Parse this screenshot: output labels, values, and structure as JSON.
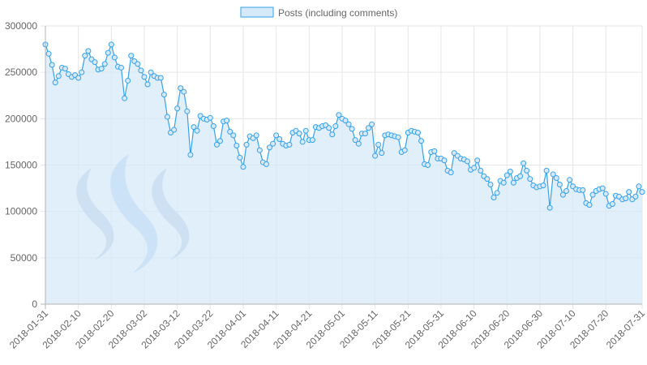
{
  "chart_data": {
    "type": "area",
    "title": "",
    "xlabel": "",
    "ylabel": "",
    "legend": {
      "position": "top-center",
      "entries": [
        "Posts (including comments)"
      ]
    },
    "grid": true,
    "ylim": [
      0,
      300000
    ],
    "y_ticks": [
      "0",
      "50000",
      "100000",
      "150000",
      "200000",
      "250000",
      "300000"
    ],
    "x_tick_labels": [
      "2018-01-31",
      "2018-02-10",
      "2018-02-20",
      "2018-03-02",
      "2018-03-12",
      "2018-03-22",
      "2018-04-01",
      "2018-04-11",
      "2018-04-21",
      "2018-05-01",
      "2018-05-11",
      "2018-05-21",
      "2018-05-31",
      "2018-06-10",
      "2018-06-20",
      "2018-06-30",
      "2018-07-10",
      "2018-07-20",
      "2018-07-31"
    ],
    "x_start": "2018-01-31",
    "x_end": "2018-07-31",
    "colors": {
      "line": "#36a2eb",
      "fill": "#d6e9f8",
      "point_fill": "#d6e9f8",
      "grid": "#e6e6e6",
      "axis": "#b3b3b3"
    },
    "series": [
      {
        "name": "Posts (including comments)",
        "values": [
          280000,
          270000,
          258000,
          239000,
          246000,
          255000,
          254000,
          248000,
          245000,
          247000,
          244000,
          250000,
          268000,
          273000,
          264000,
          261000,
          253000,
          254000,
          259000,
          271000,
          280000,
          266000,
          256000,
          255000,
          222000,
          241000,
          268000,
          262000,
          259000,
          252000,
          245000,
          237000,
          250000,
          246000,
          244000,
          244000,
          226000,
          202000,
          185000,
          188000,
          211000,
          233000,
          229000,
          208000,
          161000,
          191000,
          187000,
          203000,
          200000,
          199000,
          201000,
          192000,
          172000,
          176000,
          197000,
          198000,
          186000,
          182000,
          171000,
          158000,
          148000,
          172000,
          181000,
          179000,
          182000,
          166000,
          153000,
          151000,
          169000,
          173000,
          182000,
          178000,
          173000,
          171000,
          172000,
          185000,
          187000,
          184000,
          175000,
          187000,
          177000,
          177000,
          191000,
          190000,
          192000,
          193000,
          190000,
          183000,
          192000,
          204000,
          200000,
          198000,
          194000,
          189000,
          177000,
          173000,
          184000,
          184000,
          190000,
          194000,
          160000,
          172000,
          163000,
          182000,
          183000,
          182000,
          181000,
          180000,
          164000,
          166000,
          185000,
          187000,
          186000,
          185000,
          176000,
          151000,
          150000,
          164000,
          165000,
          157000,
          157000,
          155000,
          144000,
          142000,
          163000,
          160000,
          157000,
          156000,
          154000,
          145000,
          147000,
          155000,
          144000,
          138000,
          135000,
          129000,
          115000,
          120000,
          133000,
          131000,
          139000,
          143000,
          131000,
          136000,
          138000,
          152000,
          144000,
          135000,
          128000,
          126000,
          127000,
          128000,
          144000,
          104000,
          140000,
          136000,
          129000,
          118000,
          122000,
          134000,
          127000,
          124000,
          123000,
          123000,
          109000,
          107000,
          118000,
          122000,
          124000,
          125000,
          119000,
          106000,
          108000,
          117000,
          116000,
          113000,
          114000,
          121000,
          113000,
          116000,
          127000,
          121000
        ]
      }
    ]
  }
}
